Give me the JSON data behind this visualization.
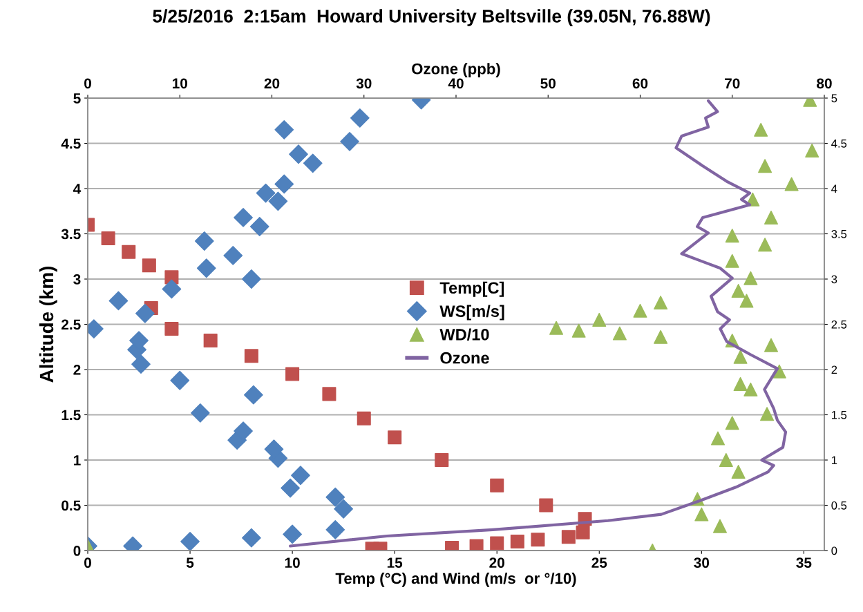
{
  "chart_data": {
    "type": "scatter",
    "title": "5/25/2016  2:15am  Howard University Beltsville (39.05N, 76.88W)",
    "xlabel": "Temp (°C) and Wind (m/s  or °/10)",
    "ylabel": "Altitude (km)",
    "x2label": "Ozone (ppb)",
    "xlim": [
      0,
      36
    ],
    "xticks": [
      0,
      5,
      10,
      15,
      20,
      25,
      30,
      35
    ],
    "x2lim": [
      0,
      80
    ],
    "x2ticks": [
      0,
      10,
      20,
      30,
      40,
      50,
      60,
      70,
      80
    ],
    "ylim": [
      0,
      5
    ],
    "yticks": [
      0,
      0.5,
      1,
      1.5,
      2,
      2.5,
      3,
      3.5,
      4,
      4.5,
      5
    ],
    "y2lim": [
      0,
      5
    ],
    "y2ticks": [
      0,
      0.5,
      1,
      1.5,
      2,
      2.5,
      3,
      3.5,
      4,
      4.5,
      5
    ],
    "grid": "y",
    "legend": "center",
    "series": [
      {
        "name": "Temp[C]",
        "color": "#c0504d",
        "marker": "square",
        "x": [
          13.9,
          14.3,
          17.8,
          19,
          20,
          21,
          22,
          23.5,
          24.2,
          24.3,
          22.4,
          20,
          17.3,
          15,
          13.5,
          11.8,
          10,
          8,
          6,
          4.1,
          3.1,
          4.1,
          3,
          2,
          1,
          0
        ],
        "values": [
          0.02,
          0.02,
          0.03,
          0.05,
          0.08,
          0.1,
          0.12,
          0.15,
          0.2,
          0.35,
          0.5,
          0.72,
          1.0,
          1.25,
          1.46,
          1.73,
          1.95,
          2.15,
          2.32,
          2.45,
          2.68,
          3.02,
          3.15,
          3.3,
          3.45,
          3.6
        ]
      },
      {
        "name": "WS[m/s]",
        "color": "#4f81bd",
        "marker": "diamond",
        "x": [
          0,
          2.2,
          5,
          8,
          10,
          12.1,
          12.5,
          12.1,
          9.9,
          10.4,
          9.3,
          9.1,
          7.3,
          7.6,
          5.5,
          8.1,
          4.5,
          2.6,
          2.4,
          2.5,
          0.3,
          2.8,
          1.5,
          4.1,
          8.0,
          5.8,
          7.1,
          5.7,
          8.4,
          7.6,
          9.3,
          8.7,
          9.6,
          11.0,
          10.3,
          12.8,
          9.6,
          13.3,
          16.3
        ],
        "values": [
          0.05,
          0.05,
          0.1,
          0.14,
          0.18,
          0.23,
          0.46,
          0.59,
          0.69,
          0.83,
          1.02,
          1.12,
          1.22,
          1.32,
          1.52,
          1.72,
          1.88,
          2.06,
          2.22,
          2.32,
          2.45,
          2.62,
          2.76,
          2.89,
          3.0,
          3.12,
          3.26,
          3.42,
          3.58,
          3.68,
          3.86,
          3.95,
          4.05,
          4.28,
          4.38,
          4.52,
          4.65,
          4.78,
          4.98
        ]
      },
      {
        "name": "WD/10",
        "color": "#9bbb59",
        "marker": "triangle",
        "x": [
          0,
          27.6,
          30.9,
          30.0,
          29.8,
          31.8,
          31.2,
          30.8,
          31.5,
          33.2,
          32.4,
          31.9,
          33.8,
          31.9,
          33.4,
          31.5,
          28,
          26,
          24,
          22.9,
          25,
          27,
          28,
          32.2,
          31.8,
          32.4,
          31.5,
          33.1,
          31.5,
          33.4,
          32.5,
          34.4,
          33.1,
          35.4,
          32.9,
          35.3
        ],
        "values": [
          0.05,
          0.0,
          0.27,
          0.4,
          0.57,
          0.87,
          1.0,
          1.24,
          1.41,
          1.51,
          1.78,
          1.84,
          1.98,
          2.14,
          2.27,
          2.32,
          2.36,
          2.4,
          2.43,
          2.46,
          2.55,
          2.65,
          2.74,
          2.76,
          2.87,
          3.01,
          3.2,
          3.38,
          3.48,
          3.68,
          3.88,
          4.05,
          4.25,
          4.42,
          4.65,
          4.98
        ]
      },
      {
        "name": "Ozone",
        "color": "#8064a2",
        "marker": "none",
        "type": "line",
        "axis": "x2",
        "x": [
          22.0,
          32.5,
          44,
          56.5,
          62.3,
          66.2,
          70.4,
          73.9,
          74.5,
          73.2,
          75.5,
          75.8,
          74.9,
          74.5,
          73.5,
          74.9,
          71.9,
          69.4,
          68.7,
          69.7,
          68.4,
          67.7,
          70.0,
          68.7,
          64.5,
          67.4,
          66.2,
          66.8,
          71.9,
          71.0,
          71.9,
          69.4,
          66.8,
          63.9,
          64.5,
          67.4,
          67.1,
          68.4,
          67.4
        ],
        "values": [
          0.05,
          0.16,
          0.23,
          0.33,
          0.4,
          0.54,
          0.7,
          0.87,
          0.94,
          1.0,
          1.14,
          1.31,
          1.44,
          1.57,
          1.78,
          2.01,
          2.17,
          2.31,
          2.45,
          2.55,
          2.64,
          2.81,
          3.01,
          3.12,
          3.28,
          3.51,
          3.58,
          3.68,
          3.82,
          3.88,
          3.95,
          4.08,
          4.25,
          4.45,
          4.58,
          4.68,
          4.78,
          4.85,
          4.97
        ]
      }
    ]
  }
}
